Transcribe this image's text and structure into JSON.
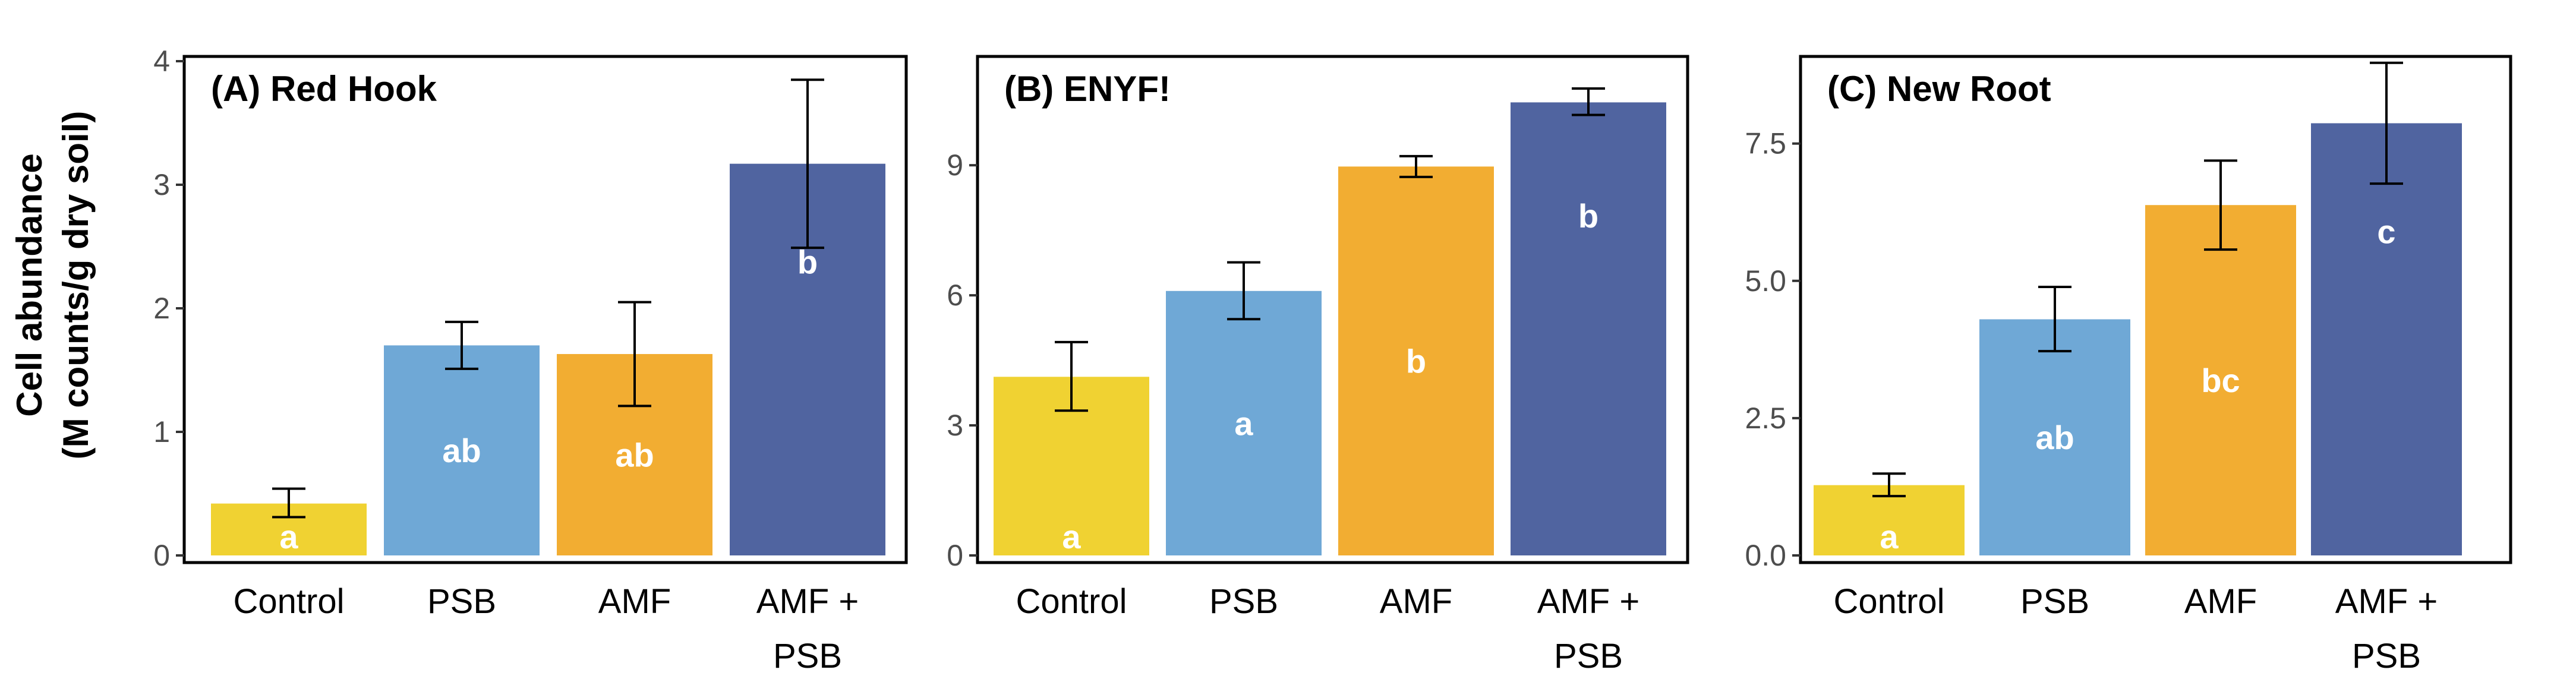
{
  "y_axis_label": [
    "Cell abundance",
    "(M counts/g dry soil)"
  ],
  "colors": [
    "#F0D232",
    "#6FA8D6",
    "#F2AD32",
    "#5064A0"
  ],
  "chart_data": [
    {
      "type": "bar",
      "title": "(A) Red Hook",
      "categories": [
        [
          "Control"
        ],
        [
          "PSB"
        ],
        [
          "AMF"
        ],
        [
          "AMF +",
          "PSB"
        ]
      ],
      "values": [
        0.42,
        1.7,
        1.63,
        3.17
      ],
      "error_low": [
        0.31,
        1.51,
        1.21,
        2.49
      ],
      "error_high": [
        0.54,
        1.89,
        2.05,
        3.85
      ],
      "labels": [
        "a",
        "ab",
        "ab",
        "b"
      ],
      "ylim": [
        0,
        4
      ],
      "ticks": [
        0,
        1,
        2,
        3,
        4
      ],
      "tick_labels": [
        "0",
        "1",
        "2",
        "3",
        "4"
      ]
    },
    {
      "type": "bar",
      "title": "(B) ENYF!",
      "categories": [
        [
          "Control"
        ],
        [
          "PSB"
        ],
        [
          "AMF"
        ],
        [
          "AMF +",
          "PSB"
        ]
      ],
      "values": [
        4.12,
        6.1,
        8.97,
        10.45
      ],
      "error_low": [
        3.34,
        5.45,
        8.73,
        10.16
      ],
      "error_high": [
        4.92,
        6.76,
        9.21,
        10.77
      ],
      "labels": [
        "a",
        "a",
        "b",
        "b"
      ],
      "ylim": [
        0,
        11.4
      ],
      "ticks": [
        0,
        3,
        6,
        9
      ],
      "tick_labels": [
        "0",
        "3",
        "6",
        "9"
      ]
    },
    {
      "type": "bar",
      "title": "(C) New Root",
      "categories": [
        [
          "Control"
        ],
        [
          "PSB"
        ],
        [
          "AMF"
        ],
        [
          "AMF +",
          "PSB"
        ]
      ],
      "values": [
        1.28,
        4.3,
        6.38,
        7.87
      ],
      "error_low": [
        1.08,
        3.72,
        5.57,
        6.77
      ],
      "error_high": [
        1.49,
        4.89,
        7.19,
        8.97
      ],
      "labels": [
        "a",
        "ab",
        "bc",
        "c"
      ],
      "ylim": [
        0,
        9.0
      ],
      "ticks": [
        0,
        2.5,
        5.0,
        7.5
      ],
      "tick_labels": [
        "0.0",
        "2.5",
        "5.0",
        "7.5"
      ]
    }
  ]
}
